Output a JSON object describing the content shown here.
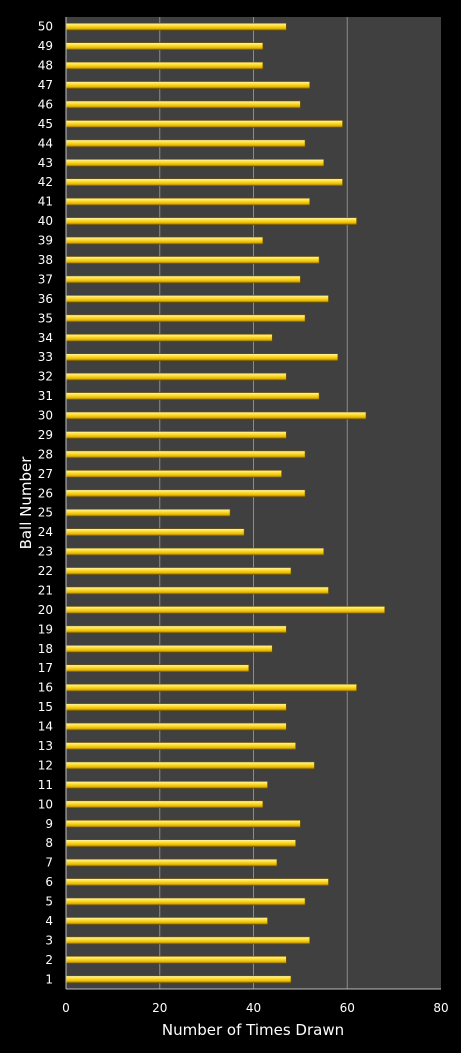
{
  "chart_data": {
    "type": "bar",
    "orientation": "horizontal",
    "title": "",
    "xlabel": "Number of Times Drawn",
    "ylabel": "Ball Number",
    "xlim": [
      0,
      80
    ],
    "xticks": [
      "0",
      "20",
      "40",
      "60",
      "80"
    ],
    "grid": "vertical gridlines",
    "legend": "none",
    "colors": {
      "background": "#000000",
      "plot_background": "#404040",
      "gridline": "#8c8c8c",
      "bar": "#ffd21a",
      "bar_highlight": "#fff29a",
      "bar_shadow": "#8a6a00"
    },
    "categories": [
      "1",
      "2",
      "3",
      "4",
      "5",
      "6",
      "7",
      "8",
      "9",
      "10",
      "11",
      "12",
      "13",
      "14",
      "15",
      "16",
      "17",
      "18",
      "19",
      "20",
      "21",
      "22",
      "23",
      "24",
      "25",
      "26",
      "27",
      "28",
      "29",
      "30",
      "31",
      "32",
      "33",
      "34",
      "35",
      "36",
      "37",
      "38",
      "39",
      "40",
      "41",
      "42",
      "43",
      "44",
      "45",
      "46",
      "47",
      "48",
      "49",
      "50"
    ],
    "values": [
      48,
      47,
      52,
      43,
      51,
      56,
      45,
      49,
      50,
      42,
      43,
      53,
      49,
      47,
      47,
      62,
      39,
      44,
      47,
      68,
      56,
      48,
      55,
      38,
      35,
      51,
      46,
      51,
      47,
      64,
      54,
      47,
      58,
      44,
      51,
      56,
      50,
      54,
      42,
      62,
      52,
      59,
      55,
      51,
      59,
      50,
      52,
      42,
      42,
      47
    ]
  }
}
